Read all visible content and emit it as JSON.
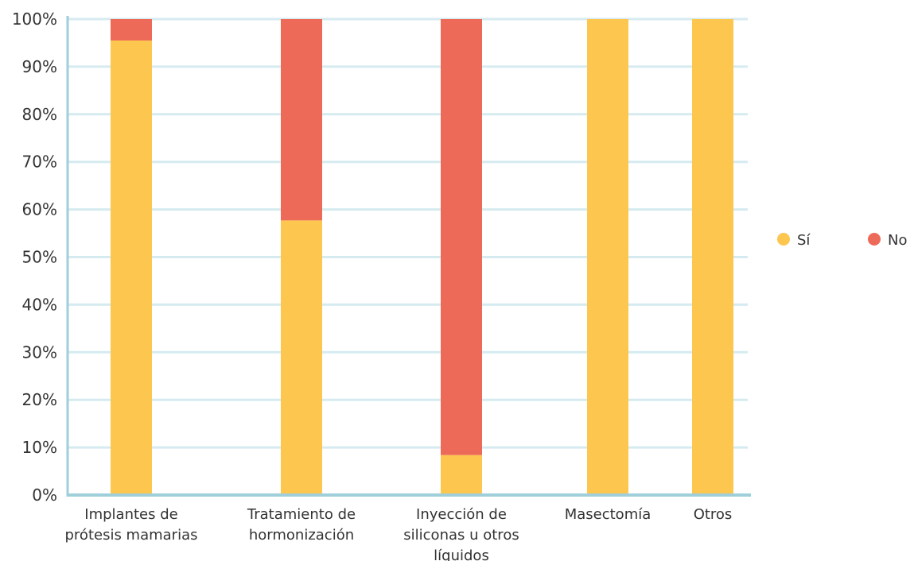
{
  "chart_data": {
    "type": "bar",
    "stacked": true,
    "percent": true,
    "categories": [
      [
        "Implantes de",
        "prótesis mamarias"
      ],
      [
        "Tratamiento de",
        "hormonización"
      ],
      [
        "Inyección de",
        "siliconas u otros",
        "líquidos"
      ],
      [
        "Masectomía"
      ],
      [
        "Otros"
      ]
    ],
    "series": [
      {
        "name": "Sí",
        "color": "#FDC64E",
        "values": [
          95.5,
          57.7,
          8.4,
          100,
          100
        ]
      },
      {
        "name": "No",
        "color": "#EE6A58",
        "values": [
          4.5,
          42.3,
          91.6,
          0,
          0
        ]
      }
    ],
    "ylim": [
      0,
      100
    ],
    "yticks": [
      "0%",
      "10%",
      "20%",
      "30%",
      "40%",
      "50%",
      "60%",
      "70%",
      "80%",
      "90%",
      "100%"
    ],
    "grid": true,
    "legend_position": "right",
    "axis_color": "#9FCFDA",
    "grid_color": "#D6EBF0"
  }
}
